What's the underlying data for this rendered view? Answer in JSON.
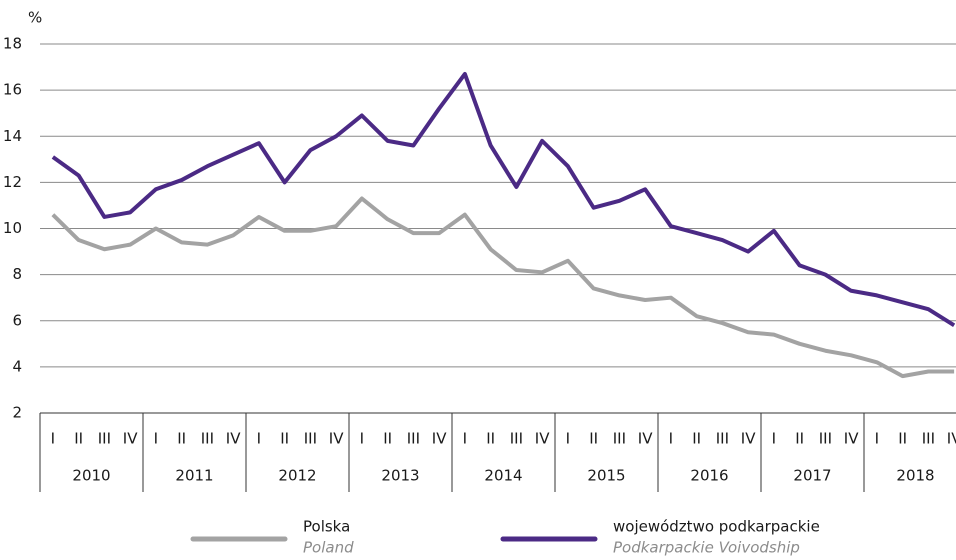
{
  "chart_data": {
    "type": "line",
    "y_label": "%",
    "categories": [
      "I",
      "II",
      "III",
      "IV",
      "I",
      "II",
      "III",
      "IV",
      "I",
      "II",
      "III",
      "IV",
      "I",
      "II",
      "III",
      "IV",
      "I",
      "II",
      "III",
      "IV",
      "I",
      "II",
      "III",
      "IV",
      "I",
      "II",
      "III",
      "IV",
      "I",
      "II",
      "III",
      "IV",
      "I",
      "II",
      "III",
      "IV"
    ],
    "groups": [
      "2010",
      "2011",
      "2012",
      "2013",
      "2014",
      "2015",
      "2016",
      "2017",
      "2018"
    ],
    "series": [
      {
        "name": "Polska",
        "subname": "Poland",
        "color": "#a3a3a3",
        "values": [
          10.6,
          9.5,
          9.1,
          9.3,
          10.0,
          9.4,
          9.3,
          9.7,
          10.5,
          9.9,
          9.9,
          10.1,
          11.3,
          10.4,
          9.8,
          9.8,
          10.6,
          9.1,
          8.2,
          8.1,
          8.6,
          7.4,
          7.1,
          6.9,
          7.0,
          6.2,
          5.9,
          5.5,
          5.4,
          5.0,
          4.7,
          4.5,
          4.2,
          3.6,
          3.8,
          3.8
        ]
      },
      {
        "name": "województwo podkarpackie",
        "subname": "Podkarpackie Voivodship",
        "color": "#4b2a85",
        "values": [
          13.1,
          12.3,
          10.5,
          10.7,
          11.7,
          12.1,
          12.7,
          13.2,
          13.7,
          12.0,
          13.4,
          14.0,
          14.9,
          13.8,
          13.6,
          15.2,
          16.7,
          13.6,
          11.8,
          13.8,
          12.7,
          10.9,
          11.2,
          11.7,
          10.1,
          9.8,
          9.5,
          9.0,
          9.9,
          8.4,
          8.0,
          7.3,
          7.1,
          6.8,
          6.5,
          5.8
        ]
      }
    ],
    "ylim": [
      2,
      18
    ],
    "yticks": [
      2,
      4,
      6,
      8,
      10,
      12,
      14,
      16,
      18
    ],
    "grid": true
  }
}
